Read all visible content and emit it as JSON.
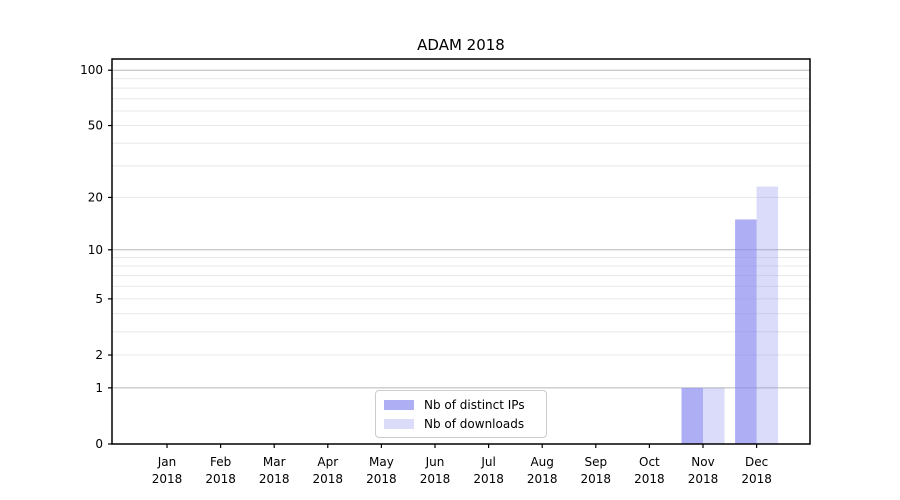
{
  "chart_data": {
    "type": "bar",
    "title": "ADAM 2018",
    "x_categories": [
      "Jan\n2018",
      "Feb\n2018",
      "Mar\n2018",
      "Apr\n2018",
      "May\n2018",
      "Jun\n2018",
      "Jul\n2018",
      "Aug\n2018",
      "Sep\n2018",
      "Oct\n2018",
      "Nov\n2018",
      "Dec\n2018"
    ],
    "series": [
      {
        "name": "Nb of distinct IPs",
        "color": "rgba(136,136,240,0.68)",
        "values": [
          0,
          0,
          0,
          0,
          0,
          0,
          0,
          0,
          0,
          0,
          1,
          15
        ]
      },
      {
        "name": "Nb of downloads",
        "color": "rgba(136,136,240,0.30)",
        "values": [
          0,
          0,
          0,
          0,
          0,
          0,
          0,
          0,
          0,
          0,
          1,
          23
        ]
      }
    ],
    "y_scale": "log1p-symlog",
    "ylim": [
      0,
      115
    ],
    "y_tick_labels": [
      0,
      1,
      2,
      5,
      10,
      20,
      50,
      100
    ],
    "y_major_gridlines": [
      1,
      10,
      100
    ],
    "y_minor_gridlines": [
      2,
      3,
      4,
      5,
      6,
      7,
      8,
      9,
      20,
      30,
      40,
      50,
      60,
      70,
      80,
      90
    ],
    "grid": true,
    "legend_position": "lower center",
    "colors": {
      "major_grid": "#b8b8b8",
      "minor_grid": "#e8e8e8",
      "spine": "#000000",
      "background": "#ffffff"
    }
  }
}
